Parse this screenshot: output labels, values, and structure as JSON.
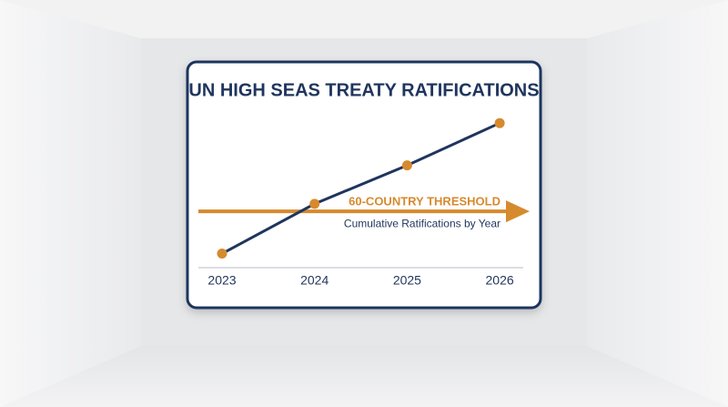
{
  "chart_data": {
    "type": "line",
    "title": "UN HIGH SEAS TREATY RATIFICATIONS",
    "y_label": "Cumulative Ratifications by Year",
    "categories": [
      "2023",
      "2024",
      "2025",
      "2026"
    ],
    "values": [
      15,
      68,
      109,
      154
    ],
    "color": "#1f355e",
    "marker_color": "#d68a2e",
    "threshold": {
      "value": 60,
      "label": "60-COUNTRY THRESHOLD",
      "color": "#d68a2e"
    },
    "ylim": [
      0,
      160
    ]
  }
}
